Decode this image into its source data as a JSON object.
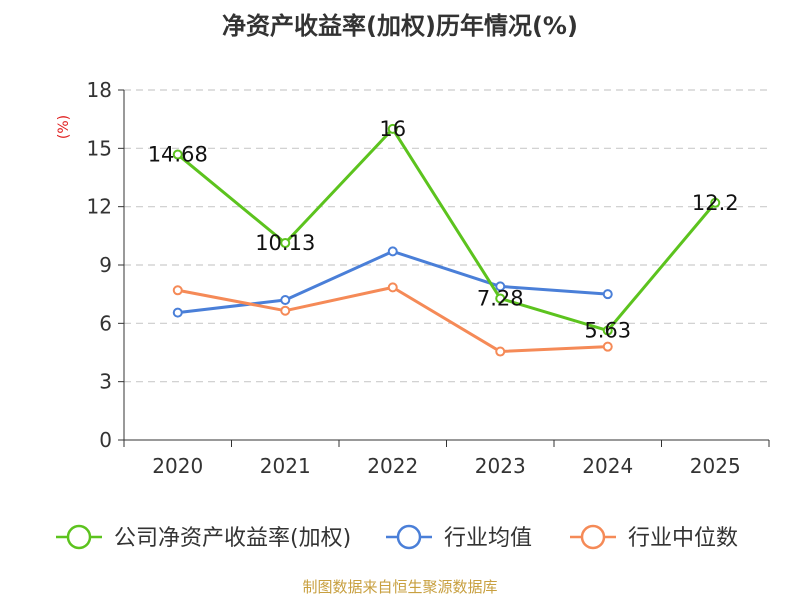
{
  "chart_data": {
    "type": "line",
    "title": "净资产收益率(加权)历年情况(%)",
    "ylabel": "(%)",
    "xlabel": "",
    "categories": [
      "2020",
      "2021",
      "2022",
      "2023",
      "2024",
      "2025"
    ],
    "ylim": [
      0,
      18
    ],
    "yticks": [
      "0",
      "3",
      "6",
      "9",
      "12",
      "15",
      "18"
    ],
    "grid": true,
    "legend_position": "bottom",
    "series": [
      {
        "name": "公司净资产收益率(加权)",
        "color": "#5cc31e",
        "values": [
          14.68,
          10.13,
          16,
          7.28,
          5.63,
          12.2
        ],
        "labels": [
          "14.68",
          "10.13",
          "16",
          "7.28",
          "5.63",
          "12.2"
        ]
      },
      {
        "name": "行业均值",
        "color": "#4a7fd8",
        "values": [
          6.55,
          7.2,
          9.7,
          7.9,
          7.5,
          null
        ]
      },
      {
        "name": "行业中位数",
        "color": "#f58a57",
        "values": [
          7.7,
          6.65,
          7.85,
          4.55,
          4.8,
          null
        ]
      }
    ],
    "source": "制图数据来自恒生聚源数据库"
  }
}
